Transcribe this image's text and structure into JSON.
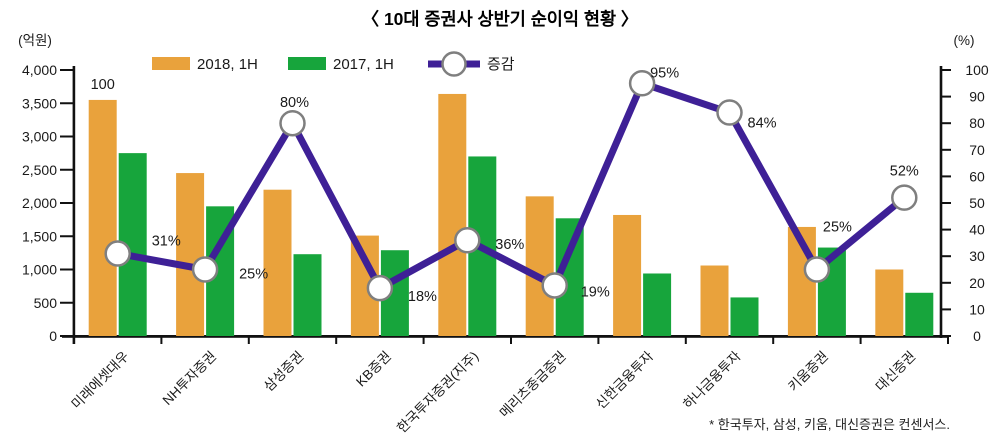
{
  "title": "〈 10대 증권사 상반기 순이익 현황 〉",
  "left_axis_unit": "(억원)",
  "right_axis_unit": "(%)",
  "legend": [
    {
      "label": "2018, 1H",
      "color": "#E9A23C",
      "marker": "bar"
    },
    {
      "label": "2017, 1H",
      "color": "#17A53C",
      "marker": "bar"
    },
    {
      "label": "증감",
      "color": "#3E2096",
      "marker": "line-circle"
    }
  ],
  "footnote": "* 한국투자, 삼성, 키움, 대신증권은 컨센서스.",
  "chart_data": {
    "type": "bar+line",
    "categories": [
      "미래에셋대우",
      "NH투자증권",
      "삼성증권",
      "KB증권",
      "한국투자증권(지주)",
      "메리츠종금증권",
      "신한금융투자",
      "하나금융투자",
      "키움증권",
      "대신증권"
    ],
    "series": [
      {
        "name": "2018, 1H",
        "type": "bar",
        "axis": "left",
        "unit": "억원",
        "color": "#E9A23C",
        "values": [
          3550,
          2450,
          2200,
          1510,
          3640,
          2100,
          1820,
          1060,
          1640,
          1000
        ]
      },
      {
        "name": "2017, 1H",
        "type": "bar",
        "axis": "left",
        "unit": "억원",
        "color": "#17A53C",
        "values": [
          2750,
          1950,
          1230,
          1290,
          2700,
          1770,
          940,
          580,
          1330,
          650
        ]
      },
      {
        "name": "증감",
        "type": "line",
        "axis": "right",
        "unit": "%",
        "color": "#3E2096",
        "marker": {
          "shape": "circle",
          "fill": "#ffffff",
          "stroke": "#7f7f7f"
        },
        "values": [
          31,
          25,
          80,
          18,
          36,
          19,
          95,
          84,
          25,
          52
        ],
        "labels": [
          "31%",
          "25%",
          "80%",
          "18%",
          "36%",
          "19%",
          "95%",
          "84%",
          "25%",
          "52%"
        ]
      }
    ],
    "bar_annotation": {
      "text": "100",
      "group": 0,
      "series": 0
    },
    "left_axis": {
      "min": 0,
      "max": 4000,
      "step": 500,
      "tick_labels": [
        "0",
        "500",
        "1,000",
        "1,500",
        "2,000",
        "2,500",
        "3,000",
        "3,500",
        "4,000"
      ]
    },
    "right_axis": {
      "min": 0,
      "max": 100,
      "step": 10,
      "tick_labels": [
        "0",
        "10",
        "20",
        "30",
        "40",
        "50",
        "60",
        "70",
        "80",
        "90",
        "100"
      ]
    },
    "grid": false,
    "legend_position": "top"
  }
}
